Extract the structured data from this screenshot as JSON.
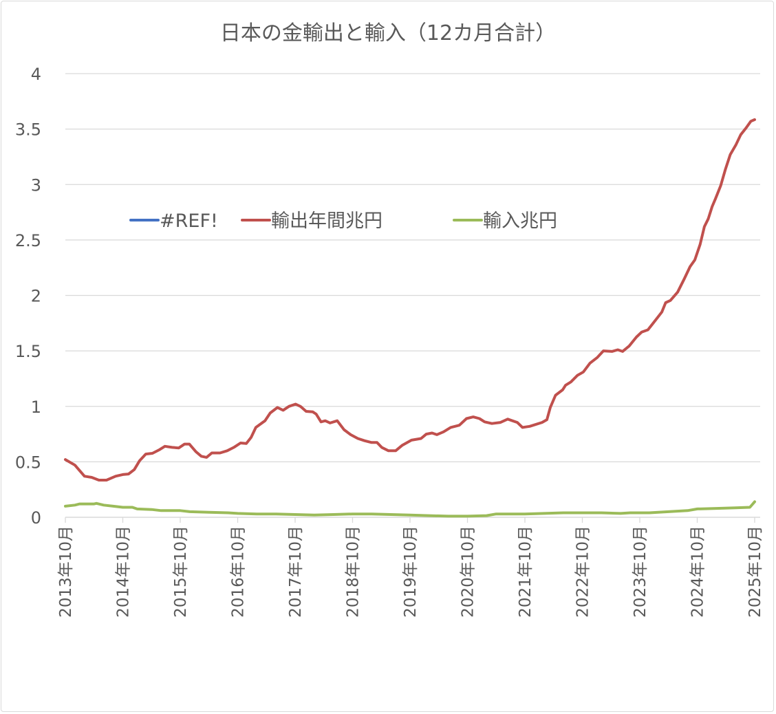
{
  "chart_data": {
    "type": "line",
    "title": "日本の金輸出と輸入（12カ月合計）",
    "xlabel": "",
    "ylabel": "",
    "x_unit": "months since 2013年10月",
    "xlim": [
      0,
      144
    ],
    "ylim": [
      0,
      4
    ],
    "y_ticks": [
      "0",
      "0.5",
      "1",
      "1.5",
      "2",
      "2.5",
      "3",
      "3.5",
      "4"
    ],
    "y_tick_values": [
      0,
      0.5,
      1,
      1.5,
      2,
      2.5,
      3,
      3.5,
      4
    ],
    "x_ticks": [
      "2013年10月",
      "2014年10月",
      "2015年10月",
      "2016年10月",
      "2017年10月",
      "2018年10月",
      "2019年10月",
      "2020年10月",
      "2021年10月",
      "2022年10月",
      "2023年10月",
      "2024年10月",
      "2025年10月"
    ],
    "x_tick_values": [
      0,
      12,
      24,
      36,
      48,
      60,
      72,
      84,
      96,
      108,
      120,
      132,
      144
    ],
    "grid": true,
    "legend_position": "inside-upper-left",
    "series": [
      {
        "name": "#REF!",
        "color": "#4472C4",
        "points": []
      },
      {
        "name": "輸出年間兆円",
        "color": "#C0504D",
        "points": [
          [
            0,
            0.52
          ],
          [
            2,
            0.47
          ],
          [
            3,
            0.42
          ],
          [
            4,
            0.37
          ],
          [
            5.5,
            0.36
          ],
          [
            7,
            0.335
          ],
          [
            8.6,
            0.335
          ],
          [
            10.5,
            0.37
          ],
          [
            12,
            0.385
          ],
          [
            13.2,
            0.39
          ],
          [
            14.4,
            0.43
          ],
          [
            15.5,
            0.51
          ],
          [
            16.8,
            0.57
          ],
          [
            18.2,
            0.577
          ],
          [
            19.7,
            0.61
          ],
          [
            20.8,
            0.64
          ],
          [
            22.3,
            0.63
          ],
          [
            23.7,
            0.625
          ],
          [
            24.9,
            0.66
          ],
          [
            25.9,
            0.66
          ],
          [
            27.3,
            0.59
          ],
          [
            28.4,
            0.55
          ],
          [
            29.5,
            0.54
          ],
          [
            30.6,
            0.58
          ],
          [
            32.3,
            0.58
          ],
          [
            33.8,
            0.6
          ],
          [
            35.2,
            0.63
          ],
          [
            36.6,
            0.67
          ],
          [
            37.8,
            0.665
          ],
          [
            38.8,
            0.72
          ],
          [
            39.8,
            0.81
          ],
          [
            41.7,
            0.87
          ],
          [
            42.8,
            0.94
          ],
          [
            44.3,
            0.99
          ],
          [
            45.5,
            0.965
          ],
          [
            46.7,
            1.0
          ],
          [
            48.1,
            1.02
          ],
          [
            49.1,
            1.0
          ],
          [
            50.3,
            0.955
          ],
          [
            51.7,
            0.95
          ],
          [
            52.4,
            0.93
          ],
          [
            53.4,
            0.86
          ],
          [
            54.3,
            0.87
          ],
          [
            55.3,
            0.85
          ],
          [
            56.8,
            0.87
          ],
          [
            58.2,
            0.79
          ],
          [
            59.6,
            0.745
          ],
          [
            61.1,
            0.71
          ],
          [
            62.5,
            0.69
          ],
          [
            63.9,
            0.675
          ],
          [
            65.1,
            0.675
          ],
          [
            66.1,
            0.63
          ],
          [
            67.5,
            0.6
          ],
          [
            69,
            0.6
          ],
          [
            70.4,
            0.65
          ],
          [
            72.3,
            0.695
          ],
          [
            74.3,
            0.71
          ],
          [
            75.4,
            0.75
          ],
          [
            76.6,
            0.76
          ],
          [
            77.6,
            0.745
          ],
          [
            79,
            0.77
          ],
          [
            80.5,
            0.81
          ],
          [
            82.3,
            0.83
          ],
          [
            83.8,
            0.89
          ],
          [
            85.2,
            0.905
          ],
          [
            86.5,
            0.89
          ],
          [
            87.6,
            0.86
          ],
          [
            89.1,
            0.845
          ],
          [
            90.9,
            0.855
          ],
          [
            92.4,
            0.885
          ],
          [
            94.4,
            0.855
          ],
          [
            95.5,
            0.81
          ],
          [
            97,
            0.82
          ],
          [
            99.6,
            0.855
          ],
          [
            100.6,
            0.88
          ],
          [
            101.3,
            0.99
          ],
          [
            102.4,
            1.1
          ],
          [
            103.9,
            1.15
          ],
          [
            104.5,
            1.19
          ],
          [
            105.6,
            1.22
          ],
          [
            107,
            1.28
          ],
          [
            108.2,
            1.31
          ],
          [
            109.6,
            1.39
          ],
          [
            111.1,
            1.44
          ],
          [
            112.4,
            1.5
          ],
          [
            114.2,
            1.495
          ],
          [
            115.4,
            1.51
          ],
          [
            116.4,
            1.495
          ],
          [
            117.8,
            1.545
          ],
          [
            119.3,
            1.625
          ],
          [
            120.4,
            1.67
          ],
          [
            121.7,
            1.69
          ],
          [
            122.8,
            1.75
          ],
          [
            124.6,
            1.85
          ],
          [
            125.4,
            1.935
          ],
          [
            126.4,
            1.955
          ],
          [
            127.9,
            2.03
          ],
          [
            129.3,
            2.15
          ],
          [
            130.5,
            2.26
          ],
          [
            131.5,
            2.32
          ],
          [
            132.6,
            2.46
          ],
          [
            133.5,
            2.62
          ],
          [
            134.3,
            2.69
          ],
          [
            135.1,
            2.8
          ],
          [
            135.8,
            2.87
          ],
          [
            136.9,
            2.99
          ],
          [
            137.9,
            3.14
          ],
          [
            138.9,
            3.27
          ],
          [
            140.1,
            3.36
          ],
          [
            141.1,
            3.45
          ],
          [
            142.2,
            3.51
          ],
          [
            143.2,
            3.57
          ],
          [
            144,
            3.585
          ]
        ]
      },
      {
        "name": "輸入兆円",
        "color": "#9BBB59",
        "points": [
          [
            0,
            0.1
          ],
          [
            2,
            0.11
          ],
          [
            3,
            0.12
          ],
          [
            6,
            0.12
          ],
          [
            6.5,
            0.125
          ],
          [
            8,
            0.11
          ],
          [
            10,
            0.1
          ],
          [
            12,
            0.09
          ],
          [
            14,
            0.09
          ],
          [
            15,
            0.075
          ],
          [
            18,
            0.07
          ],
          [
            20,
            0.06
          ],
          [
            24,
            0.06
          ],
          [
            26,
            0.05
          ],
          [
            30,
            0.045
          ],
          [
            34,
            0.04
          ],
          [
            36,
            0.035
          ],
          [
            40,
            0.03
          ],
          [
            44,
            0.03
          ],
          [
            48,
            0.025
          ],
          [
            52,
            0.02
          ],
          [
            56,
            0.025
          ],
          [
            60,
            0.03
          ],
          [
            64,
            0.03
          ],
          [
            68,
            0.025
          ],
          [
            72,
            0.02
          ],
          [
            76,
            0.015
          ],
          [
            80,
            0.01
          ],
          [
            84,
            0.01
          ],
          [
            88,
            0.015
          ],
          [
            90,
            0.03
          ],
          [
            94,
            0.03
          ],
          [
            96,
            0.03
          ],
          [
            100,
            0.035
          ],
          [
            104,
            0.04
          ],
          [
            108,
            0.04
          ],
          [
            112,
            0.04
          ],
          [
            116,
            0.035
          ],
          [
            118,
            0.04
          ],
          [
            122,
            0.04
          ],
          [
            126,
            0.05
          ],
          [
            130,
            0.06
          ],
          [
            132,
            0.075
          ],
          [
            136,
            0.08
          ],
          [
            140,
            0.085
          ],
          [
            143,
            0.09
          ],
          [
            144,
            0.14
          ]
        ]
      }
    ]
  }
}
